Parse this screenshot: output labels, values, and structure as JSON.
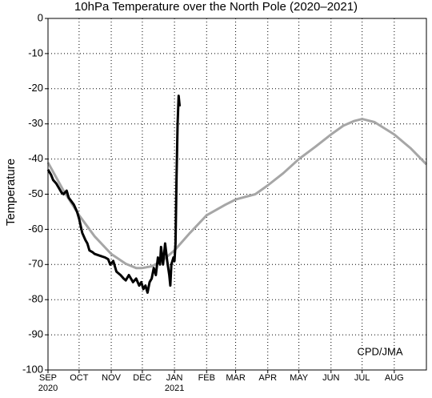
{
  "chart_data": {
    "type": "line",
    "title": "10hPa Temperature over the North Pole (2020–2021)",
    "y_label": "Temperature",
    "annotation": "CPD/JMA",
    "xlim": [
      0,
      365
    ],
    "ylim": [
      -100,
      0
    ],
    "yticks": [
      0,
      -10,
      -20,
      -30,
      -40,
      -50,
      -60,
      -70,
      -80,
      -90,
      -100
    ],
    "xticks": [
      {
        "value": 0,
        "label": "SEP"
      },
      {
        "value": 30,
        "label": "OCT"
      },
      {
        "value": 61,
        "label": "NOV"
      },
      {
        "value": 91,
        "label": "DEC"
      },
      {
        "value": 122,
        "label": "JAN"
      },
      {
        "value": 153,
        "label": "FEB"
      },
      {
        "value": 181,
        "label": "MAR"
      },
      {
        "value": 212,
        "label": "APR"
      },
      {
        "value": 242,
        "label": "MAY"
      },
      {
        "value": 273,
        "label": "JUN"
      },
      {
        "value": 303,
        "label": "JUL"
      },
      {
        "value": 334,
        "label": "AUG"
      }
    ],
    "year_labels": [
      {
        "value": 0,
        "label": "2020"
      },
      {
        "value": 122,
        "label": "2021"
      }
    ],
    "grid": true,
    "series": [
      {
        "color": "#a6a6a6",
        "x": [
          0,
          15,
          30,
          45,
          61,
          75,
          85,
          91,
          100,
          110,
          122,
          137,
          153,
          171,
          181,
          200,
          212,
          227,
          242,
          258,
          273,
          285,
          295,
          303,
          315,
          334,
          350,
          365
        ],
        "values": [
          -41,
          -49,
          -56,
          -62,
          -67,
          -69.8,
          -71,
          -71,
          -70.5,
          -69,
          -66,
          -61,
          -56,
          -53,
          -51.5,
          -50,
          -47.5,
          -44,
          -40,
          -36.5,
          -33,
          -30.5,
          -29.2,
          -28.6,
          -29.5,
          -33,
          -37,
          -41.5
        ]
      },
      {
        "color": "#000000",
        "x": [
          0,
          3,
          5,
          8,
          10,
          13,
          15,
          18,
          20,
          25,
          28,
          30,
          33,
          36,
          38,
          40,
          43,
          45,
          50,
          55,
          58,
          60,
          63,
          66,
          70,
          73,
          75,
          78,
          82,
          85,
          88,
          90,
          92,
          94,
          96,
          98,
          100,
          102,
          104,
          106,
          108,
          109,
          111,
          113,
          115,
          117,
          118,
          119,
          121,
          122,
          123,
          124,
          125,
          126,
          127
        ],
        "values": [
          -43,
          -44.5,
          -46,
          -47,
          -48,
          -49.5,
          -50,
          -49,
          -51,
          -53,
          -55,
          -57,
          -61,
          -63,
          -64,
          -66,
          -66.5,
          -67,
          -67.5,
          -68,
          -68.5,
          -70,
          -69,
          -72,
          -73,
          -74,
          -74.5,
          -73,
          -75,
          -74,
          -76,
          -75,
          -77,
          -76,
          -78,
          -75,
          -74,
          -71,
          -73,
          -68,
          -70,
          -65,
          -70,
          -64,
          -69,
          -73,
          -76,
          -70,
          -68,
          -69,
          -64,
          -45,
          -30,
          -22,
          -25
        ]
      }
    ]
  }
}
